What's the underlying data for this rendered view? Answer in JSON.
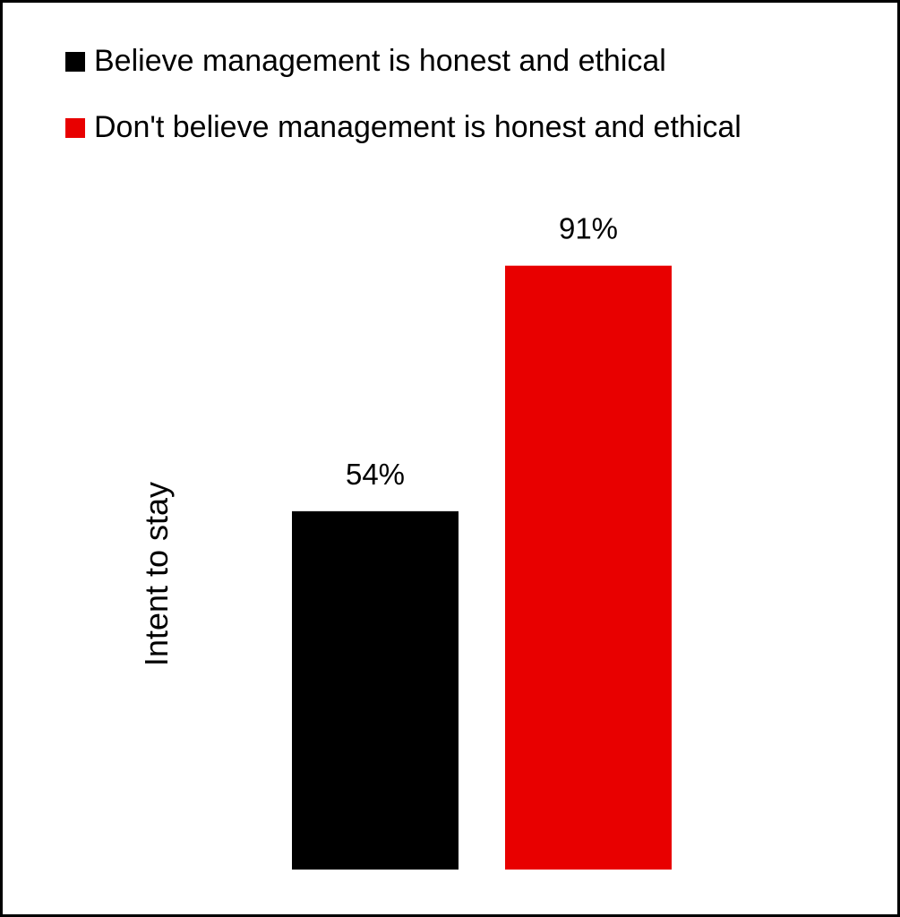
{
  "chart_data": {
    "type": "bar",
    "categories": [
      "Believe management is honest and ethical",
      "Don't believe management is honest and ethical"
    ],
    "values": [
      54,
      91
    ],
    "value_labels": [
      "54%",
      "91%"
    ],
    "colors": [
      "#000000",
      "#e80000"
    ],
    "ylabel": "Intent to stay",
    "xlabel": "",
    "ylim": [
      0,
      100
    ],
    "grid": false,
    "legend_position": "top-left"
  }
}
